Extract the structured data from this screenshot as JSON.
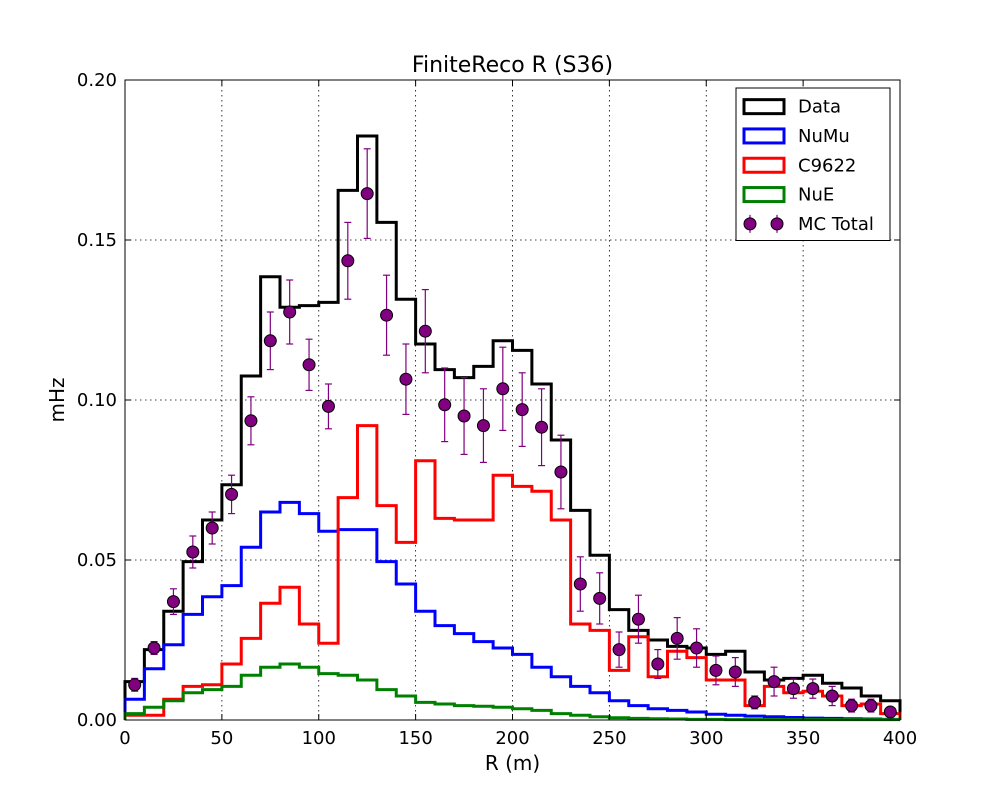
{
  "chart_data": {
    "type": "histogram",
    "title": "FiniteReco R (S36)",
    "xlabel": "R (m)",
    "ylabel": "mHz",
    "xlim": [
      0,
      400
    ],
    "ylim": [
      0,
      0.2
    ],
    "xticks": [
      0,
      50,
      100,
      150,
      200,
      250,
      300,
      350,
      400
    ],
    "xtick_labels": [
      "0",
      "50",
      "100",
      "150",
      "200",
      "250",
      "300",
      "350",
      "400"
    ],
    "yticks": [
      0,
      0.05,
      0.1,
      0.15,
      0.2
    ],
    "ytick_labels": [
      "0.00",
      "0.05",
      "0.10",
      "0.15",
      "0.20"
    ],
    "grid": true,
    "legend_position": "top-right",
    "bin_edges": [
      0,
      10,
      20,
      30,
      40,
      50,
      60,
      70,
      80,
      90,
      100,
      110,
      120,
      130,
      140,
      150,
      160,
      170,
      180,
      190,
      200,
      210,
      220,
      230,
      240,
      250,
      260,
      270,
      280,
      290,
      300,
      310,
      320,
      330,
      340,
      350,
      360,
      370,
      380,
      390,
      400
    ],
    "series": [
      {
        "name": "Data",
        "style": "step",
        "color": "#000000",
        "values": [
          0.012,
          0.022,
          0.034,
          0.0495,
          0.0625,
          0.0735,
          0.1075,
          0.1385,
          0.129,
          0.1295,
          0.1305,
          0.1655,
          0.1825,
          0.1555,
          0.1315,
          0.1175,
          0.1095,
          0.107,
          0.1105,
          0.1185,
          0.1155,
          0.105,
          0.0875,
          0.0655,
          0.0515,
          0.0345,
          0.028,
          0.025,
          0.023,
          0.0225,
          0.0205,
          0.0215,
          0.015,
          0.0125,
          0.013,
          0.014,
          0.0115,
          0.01,
          0.0075,
          0.006
        ]
      },
      {
        "name": "NuMu",
        "style": "step",
        "color": "#0000ff",
        "values": [
          0.0065,
          0.016,
          0.0235,
          0.033,
          0.0385,
          0.042,
          0.054,
          0.065,
          0.068,
          0.0645,
          0.059,
          0.0595,
          0.0595,
          0.0495,
          0.0425,
          0.034,
          0.0295,
          0.027,
          0.0245,
          0.0225,
          0.0205,
          0.0165,
          0.0135,
          0.0105,
          0.0085,
          0.006,
          0.0045,
          0.0035,
          0.003,
          0.0025,
          0.0018,
          0.0015,
          0.0012,
          0.001,
          0.0008,
          0.0006,
          0.0005,
          0.0004,
          0.0003,
          0.0002
        ]
      },
      {
        "name": "C9622",
        "style": "step",
        "color": "#ff0000",
        "values": [
          0.0015,
          0.0015,
          0.0065,
          0.0105,
          0.011,
          0.0175,
          0.0255,
          0.0365,
          0.0415,
          0.03,
          0.024,
          0.0695,
          0.092,
          0.067,
          0.0555,
          0.081,
          0.063,
          0.0625,
          0.0625,
          0.0765,
          0.073,
          0.0715,
          0.0625,
          0.03,
          0.028,
          0.0155,
          0.026,
          0.0135,
          0.0215,
          0.0195,
          0.0125,
          0.0125,
          0.0045,
          0.0105,
          0.0085,
          0.009,
          0.0075,
          0.0045,
          0.005,
          0.002
        ]
      },
      {
        "name": "NuE",
        "style": "step",
        "color": "#008000",
        "values": [
          0.002,
          0.004,
          0.006,
          0.0085,
          0.0095,
          0.0105,
          0.014,
          0.0165,
          0.0175,
          0.0165,
          0.0145,
          0.014,
          0.0125,
          0.0095,
          0.0075,
          0.0055,
          0.005,
          0.0045,
          0.0043,
          0.004,
          0.0035,
          0.003,
          0.002,
          0.0015,
          0.001,
          0.0007,
          0.0005,
          0.0004,
          0.0003,
          0.0002,
          0.0002,
          0.0001,
          0.0001,
          0.0001,
          0.0001,
          0.0001,
          0.0001,
          0.0001,
          0.0001,
          0.0001
        ]
      },
      {
        "name": "MC Total",
        "style": "points",
        "color": "#800080",
        "x": [
          5,
          15,
          25,
          35,
          45,
          55,
          65,
          75,
          85,
          95,
          105,
          115,
          125,
          135,
          145,
          155,
          165,
          175,
          185,
          195,
          205,
          215,
          225,
          235,
          245,
          255,
          265,
          275,
          285,
          295,
          305,
          315,
          325,
          335,
          345,
          355,
          365,
          375,
          385,
          395
        ],
        "values": [
          0.011,
          0.0225,
          0.037,
          0.0525,
          0.06,
          0.0705,
          0.0935,
          0.1185,
          0.1275,
          0.111,
          0.098,
          0.1435,
          0.1645,
          0.1265,
          0.1065,
          0.1215,
          0.0985,
          0.095,
          0.092,
          0.1035,
          0.097,
          0.0915,
          0.0775,
          0.0425,
          0.038,
          0.022,
          0.0315,
          0.0175,
          0.0255,
          0.0225,
          0.0155,
          0.015,
          0.0055,
          0.012,
          0.0098,
          0.0098,
          0.0075,
          0.0045,
          0.0045,
          0.0025
        ],
        "errors": [
          0.002,
          0.002,
          0.004,
          0.005,
          0.005,
          0.006,
          0.0075,
          0.009,
          0.01,
          0.008,
          0.007,
          0.012,
          0.014,
          0.0125,
          0.011,
          0.013,
          0.0115,
          0.012,
          0.0115,
          0.013,
          0.0115,
          0.012,
          0.0115,
          0.0085,
          0.008,
          0.0055,
          0.0075,
          0.0045,
          0.0065,
          0.006,
          0.0045,
          0.0045,
          0.002,
          0.0045,
          0.003,
          0.003,
          0.003,
          0.002,
          0.002,
          0.001
        ]
      }
    ]
  }
}
